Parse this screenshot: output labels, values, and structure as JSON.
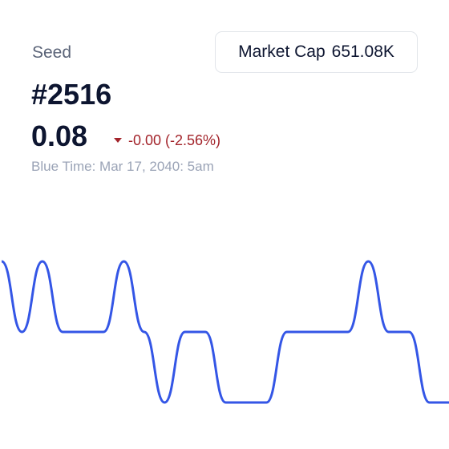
{
  "header": {
    "label": "Seed",
    "title": "#2516",
    "price": "0.08",
    "change": "-0.00 (-2.56%)",
    "time": "Blue Time: Mar 17, 2040: 5am"
  },
  "button": {
    "label": "Market Cap",
    "value": "651.08K"
  },
  "chart_data": {
    "type": "line",
    "color": "#3456e6",
    "x": [
      0,
      1,
      2,
      3,
      4,
      5,
      6,
      7,
      8,
      9,
      10,
      11,
      12,
      13,
      14,
      15,
      16,
      17,
      18,
      19,
      20,
      21,
      22
    ],
    "values": [
      3,
      2,
      3,
      2,
      2,
      2,
      3,
      2,
      1,
      2,
      2,
      1,
      1,
      1,
      2,
      2,
      2,
      2,
      3,
      2,
      2,
      1,
      1
    ],
    "xlim": [
      0,
      22
    ],
    "ylim": [
      1,
      3
    ]
  }
}
